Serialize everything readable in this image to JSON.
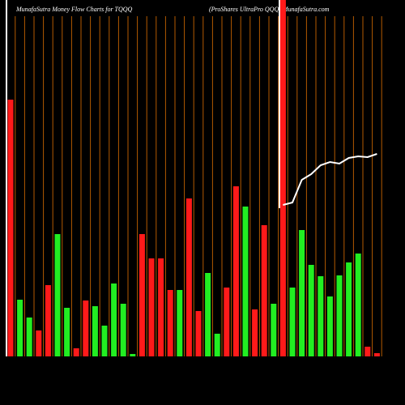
{
  "chart_data": {
    "type": "bar",
    "title": "MunafaSutra  Money Flow  Charts for TQQQ",
    "subtitle": "(ProShares UltraPro  QQQ) MunafaSutra.com",
    "values": [
      317,
      70,
      48,
      32,
      88,
      151,
      60,
      10,
      69,
      62,
      38,
      90,
      65,
      3,
      151,
      121,
      121,
      82,
      82,
      195,
      56,
      103,
      28,
      85,
      210,
      185,
      58,
      162,
      65,
      440,
      85,
      156,
      113,
      99,
      74,
      100,
      116,
      127,
      12,
      4
    ],
    "colors": [
      "#ff1a1a",
      "#22ee22",
      "#22ee22",
      "#ff1a1a",
      "#ff1a1a",
      "#22ee22",
      "#22ee22",
      "#ff1a1a",
      "#ff1a1a",
      "#22ee22",
      "#22ee22",
      "#22ee22",
      "#22ee22",
      "#22ee22",
      "#ff1a1a",
      "#ff1a1a",
      "#ff1a1a",
      "#ff1a1a",
      "#22ee22",
      "#ff1a1a",
      "#ff1a1a",
      "#22ee22",
      "#22ee22",
      "#ff1a1a",
      "#ff1a1a",
      "#22ee22",
      "#ff1a1a",
      "#ff1a1a",
      "#22ee22",
      "#ff1a1a",
      "#22ee22",
      "#22ee22",
      "#22ee22",
      "#22ee22",
      "#22ee22",
      "#22ee22",
      "#22ee22",
      "#22ee22",
      "#ff1a1a",
      "#ff1a1a"
    ],
    "line": {
      "color": "#ffffff",
      "values": [
        null,
        null,
        null,
        null,
        null,
        null,
        null,
        null,
        null,
        null,
        null,
        null,
        null,
        null,
        null,
        null,
        null,
        null,
        null,
        null,
        null,
        null,
        null,
        null,
        null,
        null,
        null,
        null,
        null,
        187,
        190,
        218,
        225,
        236,
        240,
        238,
        245,
        247,
        246,
        250
      ]
    },
    "ylim": [
      0,
      440
    ],
    "grid": true,
    "grid_color": "#b35a00"
  }
}
